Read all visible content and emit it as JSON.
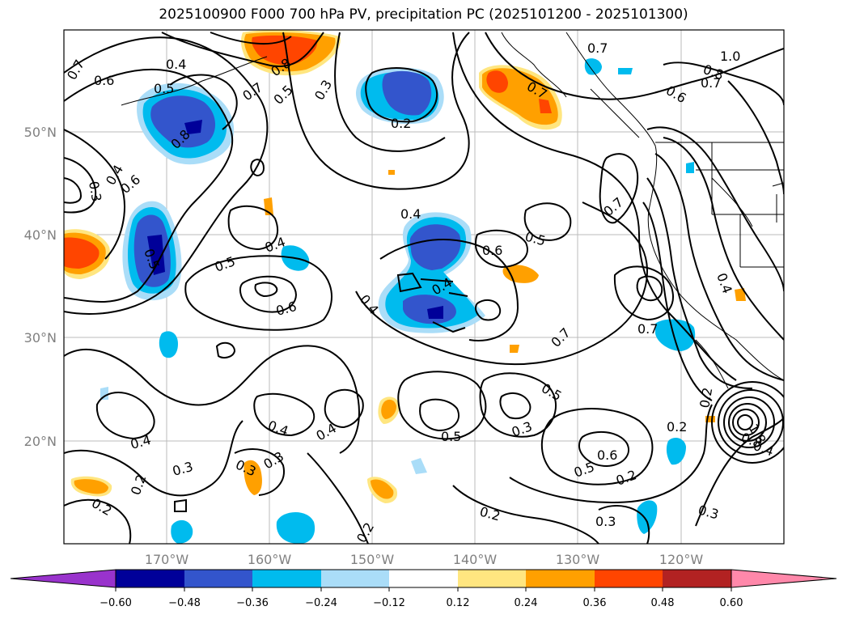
{
  "title": "2025100900 F000 700 hPa PV, precipitation PC (2025101200 - 2025101300)",
  "map": {
    "lat_labels": [
      "50°N",
      "40°N",
      "30°N",
      "20°N"
    ],
    "lon_labels": [
      "170°W",
      "160°W",
      "150°W",
      "140°W",
      "130°W",
      "120°W"
    ],
    "contour_labels": [
      "0.7",
      "0.6",
      "0.4",
      "0.5",
      "0.8",
      "0.7",
      "0.5",
      "0.3",
      "0.8",
      "0.2",
      "0.7",
      "0.7",
      "1.0",
      "0.8",
      "0.7",
      "0.6",
      "0.3",
      "0.4",
      "0.6",
      "0.5",
      "0.4",
      "0.4",
      "0.6",
      "0.5",
      "0.7",
      "0.5",
      "0.4",
      "0.6",
      "0.4",
      "0.7",
      "0.7",
      "0.5",
      "0.4",
      "0.4",
      "0.4",
      "0.5",
      "0.3",
      "0.4",
      "0.3",
      "0.2",
      "0.3",
      "0.6",
      "0.5",
      "0.2",
      "0.2",
      "0.3",
      "0.3",
      "0.2",
      "0.2",
      "0.3",
      "0.2",
      "0.2",
      "1.8",
      "0.8",
      "0.4"
    ]
  },
  "colorbar": {
    "ticks": [
      "−0.60",
      "−0.48",
      "−0.36",
      "−0.24",
      "−0.12",
      "0.12",
      "0.24",
      "0.36",
      "0.48",
      "0.60"
    ],
    "colors": [
      "#9933cc",
      "#000099",
      "#3355cc",
      "#00bbee",
      "#aaddf8",
      "#ffffff",
      "#ffe680",
      "#ffa000",
      "#ff4500",
      "#b22222",
      "#ff88aa"
    ]
  }
}
